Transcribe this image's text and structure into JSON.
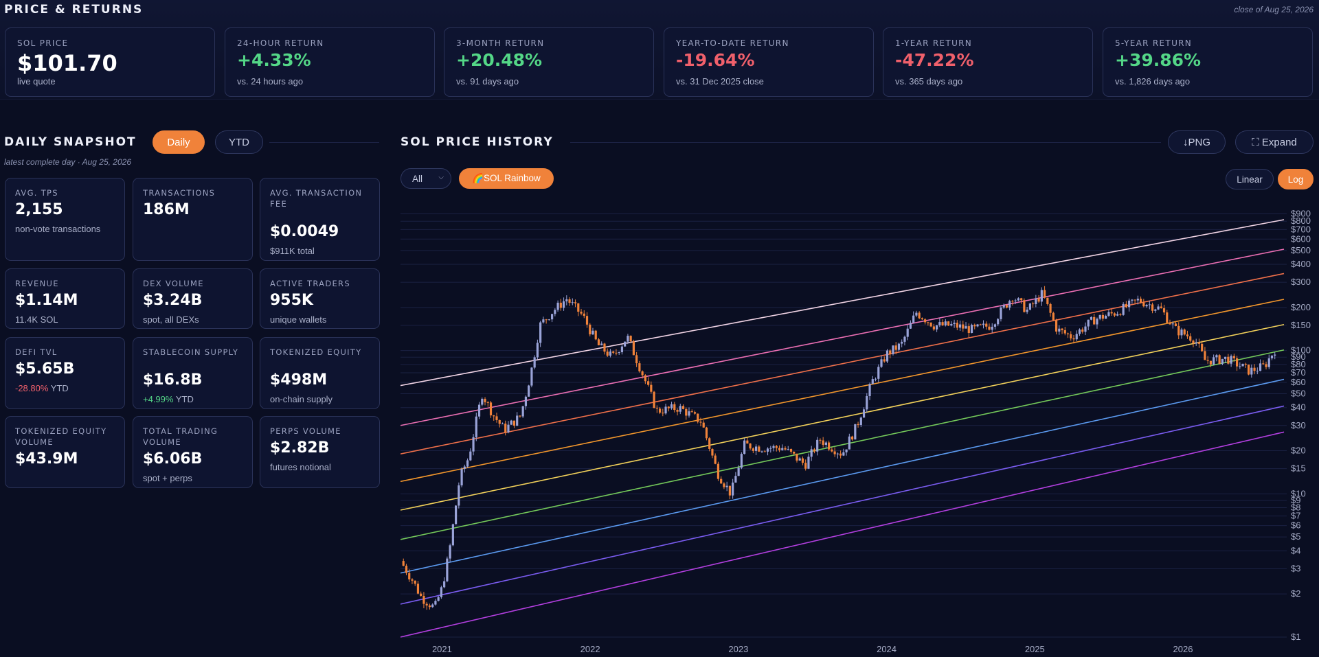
{
  "header": {
    "title": "PRICE & RETURNS",
    "close_note": "close of Aug 25, 2026"
  },
  "returns": [
    {
      "label": "SOL PRICE",
      "value": "$101.70",
      "sub": "live quote",
      "tone": "neutral"
    },
    {
      "label": "24-HOUR RETURN",
      "value": "+4.33%",
      "sub": "vs. 24 hours ago",
      "tone": "pos"
    },
    {
      "label": "3-MONTH RETURN",
      "value": "+20.48%",
      "sub": "vs. 91 days ago",
      "tone": "pos"
    },
    {
      "label": "YEAR-TO-DATE RETURN",
      "value": "-19.64%",
      "sub": "vs. 31 Dec 2025 close",
      "tone": "neg"
    },
    {
      "label": "1-YEAR RETURN",
      "value": "-47.22%",
      "sub": "vs. 365 days ago",
      "tone": "neg"
    },
    {
      "label": "5-YEAR RETURN",
      "value": "+39.86%",
      "sub": "vs. 1,826 days ago",
      "tone": "pos"
    }
  ],
  "snapshot": {
    "title": "DAILY SNAPSHOT",
    "toggle_daily": "Daily",
    "toggle_ytd": "YTD",
    "note": "latest complete day · Aug 25, 2026",
    "cards": [
      {
        "label": "AVG. TPS",
        "value": "2,155",
        "sub": "non-vote transactions"
      },
      {
        "label": "TRANSACTIONS",
        "value": "186M",
        "sub": ""
      },
      {
        "label": "AVG. TRANSACTION FEE",
        "value": "$0.0049",
        "sub": "$911K total"
      },
      {
        "label": "REVENUE",
        "value": "$1.14M",
        "sub": "11.4K SOL"
      },
      {
        "label": "DEX VOLUME",
        "value": "$3.24B",
        "sub": "spot, all DEXs"
      },
      {
        "label": "ACTIVE TRADERS",
        "value": "955K",
        "sub": "unique wallets"
      },
      {
        "label": "DEFI TVL",
        "value": "$5.65B",
        "sub_change": "-28.80%",
        "sub_tail": " YTD",
        "tone": "neg"
      },
      {
        "label": "STABLECOIN SUPPLY",
        "value": "$16.8B",
        "sub_change": "+4.99%",
        "sub_tail": " YTD",
        "tone": "pos"
      },
      {
        "label": "TOKENIZED EQUITY",
        "value": "$498M",
        "sub": "on-chain supply"
      },
      {
        "label": "TOKENIZED EQUITY VOLUME",
        "value": "$43.9M",
        "sub": ""
      },
      {
        "label": "TOTAL TRADING VOLUME",
        "value": "$6.06B",
        "sub": "spot + perps"
      },
      {
        "label": "PERPS VOLUME",
        "value": "$2.82B",
        "sub": "futures notional"
      }
    ]
  },
  "history": {
    "title": "SOL PRICE HISTORY",
    "png_label": "↓PNG",
    "expand_label": "⛶ Expand",
    "range_select": "All",
    "rainbow_label": "🌈SOL Rainbow",
    "linear_label": "Linear",
    "log_label": "Log",
    "scale": "log"
  },
  "colors": {
    "accent": "#f0823a",
    "up": "#9aa3d8",
    "down": "#f0823a",
    "positive": "#54d787",
    "negative": "#f0606b",
    "bands": [
      "#f2d5e6",
      "#ec6fb4",
      "#f0704a",
      "#f2962c",
      "#f2d15a",
      "#74c95a",
      "#5b9af0",
      "#7a5cf0",
      "#b33fe0"
    ]
  },
  "chart_data": {
    "type": "candlestick",
    "scale": "log",
    "x_ticks": [
      "2021",
      "2022",
      "2023",
      "2024",
      "2025",
      "2026"
    ],
    "x_range": [
      2020.72,
      2026.7
    ],
    "y_ticks": [
      "$1",
      "$2",
      "$3",
      "$4",
      "$5",
      "$6",
      "$7",
      "$8",
      "$9",
      "$10",
      "$15",
      "$20",
      "$30",
      "$40",
      "$50",
      "$60",
      "$70",
      "$80",
      "$90",
      "$100",
      "$150",
      "$200",
      "$300",
      "$400",
      "$500",
      "$600",
      "$700",
      "$800",
      "$900"
    ],
    "y_tick_values": [
      1,
      2,
      3,
      4,
      5,
      6,
      7,
      8,
      9,
      10,
      15,
      20,
      30,
      40,
      50,
      60,
      70,
      80,
      90,
      100,
      150,
      200,
      300,
      400,
      500,
      600,
      700,
      800,
      900
    ],
    "ylim": [
      1,
      1000
    ],
    "rainbow_bands": [
      {
        "start": 57,
        "end": 820
      },
      {
        "start": 30,
        "end": 510
      },
      {
        "start": 19,
        "end": 345
      },
      {
        "start": 12.2,
        "end": 228
      },
      {
        "start": 7.7,
        "end": 152
      },
      {
        "start": 4.8,
        "end": 101
      },
      {
        "start": 2.8,
        "end": 63
      },
      {
        "start": 1.7,
        "end": 41
      },
      {
        "start": 1.0,
        "end": 27
      }
    ],
    "price_path": [
      {
        "t": 2020.72,
        "p": 3.4
      },
      {
        "t": 2020.8,
        "p": 2.5
      },
      {
        "t": 2020.86,
        "p": 1.9
      },
      {
        "t": 2020.95,
        "p": 1.6
      },
      {
        "t": 2021.0,
        "p": 2.2
      },
      {
        "t": 2021.05,
        "p": 4.0
      },
      {
        "t": 2021.12,
        "p": 13
      },
      {
        "t": 2021.18,
        "p": 18
      },
      {
        "t": 2021.27,
        "p": 50
      },
      {
        "t": 2021.35,
        "p": 35
      },
      {
        "t": 2021.42,
        "p": 28
      },
      {
        "t": 2021.53,
        "p": 35
      },
      {
        "t": 2021.6,
        "p": 70
      },
      {
        "t": 2021.66,
        "p": 150
      },
      {
        "t": 2021.74,
        "p": 185
      },
      {
        "t": 2021.84,
        "p": 230
      },
      {
        "t": 2021.95,
        "p": 175
      },
      {
        "t": 2022.05,
        "p": 110
      },
      {
        "t": 2022.15,
        "p": 90
      },
      {
        "t": 2022.25,
        "p": 125
      },
      {
        "t": 2022.35,
        "p": 70
      },
      {
        "t": 2022.45,
        "p": 38
      },
      {
        "t": 2022.6,
        "p": 40
      },
      {
        "t": 2022.75,
        "p": 32
      },
      {
        "t": 2022.86,
        "p": 14
      },
      {
        "t": 2022.95,
        "p": 10
      },
      {
        "t": 2023.04,
        "p": 22
      },
      {
        "t": 2023.15,
        "p": 21
      },
      {
        "t": 2023.3,
        "p": 21
      },
      {
        "t": 2023.45,
        "p": 16
      },
      {
        "t": 2023.55,
        "p": 24
      },
      {
        "t": 2023.7,
        "p": 19
      },
      {
        "t": 2023.8,
        "p": 30
      },
      {
        "t": 2023.9,
        "p": 60
      },
      {
        "t": 2024.0,
        "p": 95
      },
      {
        "t": 2024.1,
        "p": 110
      },
      {
        "t": 2024.2,
        "p": 185
      },
      {
        "t": 2024.32,
        "p": 150
      },
      {
        "t": 2024.45,
        "p": 150
      },
      {
        "t": 2024.58,
        "p": 140
      },
      {
        "t": 2024.7,
        "p": 150
      },
      {
        "t": 2024.85,
        "p": 240
      },
      {
        "t": 2024.95,
        "p": 190
      },
      {
        "t": 2025.05,
        "p": 250
      },
      {
        "t": 2025.15,
        "p": 140
      },
      {
        "t": 2025.25,
        "p": 125
      },
      {
        "t": 2025.4,
        "p": 165
      },
      {
        "t": 2025.55,
        "p": 185
      },
      {
        "t": 2025.7,
        "p": 225
      },
      {
        "t": 2025.85,
        "p": 195
      },
      {
        "t": 2025.95,
        "p": 140
      },
      {
        "t": 2026.08,
        "p": 120
      },
      {
        "t": 2026.15,
        "p": 85
      },
      {
        "t": 2026.3,
        "p": 88
      },
      {
        "t": 2026.45,
        "p": 72
      },
      {
        "t": 2026.55,
        "p": 78
      },
      {
        "t": 2026.62,
        "p": 101.7
      }
    ]
  }
}
